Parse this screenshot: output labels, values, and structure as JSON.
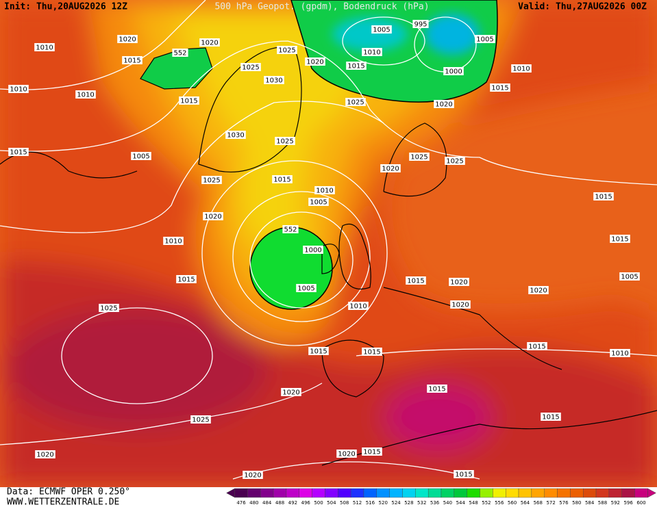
{
  "header": {
    "init": "Init: Thu,20AUG2026 12Z",
    "title": "500 hPa Geopot. (gpdm), Bodendruck (hPa)",
    "valid": "Valid: Thu,27AUG2026 00Z"
  },
  "footer": {
    "source": "Data: ECMWF OPER 0.250°",
    "site": "WWW.WETTERZENTRALE.DE"
  },
  "contour_labels": [
    "1010",
    "1020",
    "552",
    "1020",
    "1015",
    "1025",
    "1025",
    "1020",
    "1005",
    "995",
    "1010",
    "1015",
    "1005",
    "1010",
    "1000",
    "1015",
    "1010",
    "1010",
    "1015",
    "1030",
    "1025",
    "1020",
    "1030",
    "1025",
    "1015",
    "1005",
    "1025",
    "1025",
    "1020",
    "1025",
    "1015",
    "1010",
    "1005",
    "1020",
    "552",
    "1010",
    "1000",
    "1015",
    "1015",
    "1015",
    "1005",
    "1015",
    "1020",
    "1005",
    "1020",
    "1010",
    "1025",
    "1020",
    "1015",
    "1010",
    "1015",
    "1015",
    "1015",
    "1020",
    "1015",
    "1025",
    "1020",
    "1020",
    "1015",
    "1015",
    "1020"
  ],
  "colorbar": {
    "levels": [
      476,
      480,
      484,
      488,
      492,
      496,
      500,
      504,
      508,
      512,
      516,
      520,
      524,
      528,
      532,
      536,
      540,
      544,
      548,
      552,
      556,
      560,
      564,
      568,
      572,
      576,
      580,
      584,
      588,
      592,
      596,
      600
    ],
    "colors": [
      "#4a0050",
      "#64006e",
      "#82008c",
      "#a000aa",
      "#be00c8",
      "#dc00e6",
      "#b400ff",
      "#8200ff",
      "#5000ff",
      "#1e32ff",
      "#0064ff",
      "#0091ff",
      "#00b4ff",
      "#00d2f0",
      "#00e6c8",
      "#00dc96",
      "#00d264",
      "#00c83c",
      "#1edc00",
      "#96f000",
      "#f0f000",
      "#ffdc00",
      "#ffc300",
      "#ffa500",
      "#ff8c00",
      "#f57300",
      "#eb5f00",
      "#dc4b0a",
      "#d2371e",
      "#be2332",
      "#aa1446",
      "#c8007d"
    ]
  }
}
